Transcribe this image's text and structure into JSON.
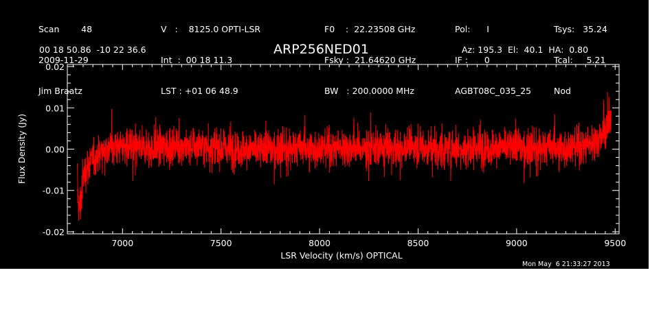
{
  "header": {
    "col1": [
      "Scan        48",
      "2009-11-29",
      "Jim Braatz"
    ],
    "col2": [
      "V   :    8125.0 OPTI-LSR",
      "Int  :  00 18 11.3",
      "LST : +01 06 48.9"
    ],
    "col3": [
      "F0    :  22.23508 GHz",
      "Fsky :  21.64620 GHz",
      "BW   : 200.0000 MHz"
    ],
    "col4": [
      "Pol:      I",
      "IF :      0",
      "AGBT08C_035_25"
    ],
    "col5": [
      "Tsys:   35.24",
      "Tcal:     5.21",
      "Nod"
    ],
    "coords": "00 18 50.86  -10 22 36.6",
    "source": "ARP256NED01",
    "pointing": "Az: 195.3  El:  40.1  HA:  0.80",
    "timestamp": "Mon May  6 21:33:27 2013"
  },
  "colors": {
    "background": "#000000",
    "axes": "#ffffff",
    "trace": "#ff0000"
  },
  "chart_data": {
    "type": "line",
    "xlabel": "LSR Velocity (km/s) OPTICAL",
    "ylabel": "Flux Density (Jy)",
    "xlim": [
      6720,
      9520
    ],
    "ylim": [
      -0.0205,
      0.0205
    ],
    "xticks": [
      7000,
      7500,
      8000,
      8500,
      9000,
      9500
    ],
    "yticks": [
      -0.02,
      -0.01,
      0.0,
      0.01,
      0.02
    ],
    "xtick_labels": [
      "7000",
      "7500",
      "8000",
      "8500",
      "9000",
      "9500"
    ],
    "ytick_labels": [
      "-0.02",
      "-0.01",
      "0.00",
      "0.01",
      "0.02"
    ],
    "grid": false,
    "series": [
      {
        "color": "#ff0000",
        "x": [
          6770,
          6780,
          6790,
          6800,
          6820,
          6840,
          6860,
          6880,
          6900,
          6950,
          7000,
          7050,
          7100,
          7150,
          7200,
          7250,
          7300,
          7350,
          7400,
          7450,
          7500,
          7550,
          7600,
          7650,
          7700,
          7750,
          7800,
          7850,
          7900,
          7950,
          8000,
          8050,
          8100,
          8150,
          8200,
          8250,
          8300,
          8350,
          8400,
          8450,
          8500,
          8550,
          8600,
          8650,
          8700,
          8750,
          8800,
          8850,
          8900,
          8950,
          9000,
          9050,
          9100,
          9150,
          9200,
          9250,
          9300,
          9350,
          9380,
          9400,
          9420,
          9440,
          9460,
          9470,
          9480
        ],
        "y": [
          -0.008,
          -0.015,
          -0.012,
          -0.007,
          -0.004,
          -0.003,
          -0.002,
          -0.001,
          0.0,
          0.0005,
          0.0008,
          0.0005,
          0.0,
          0.0003,
          0.0006,
          0.0005,
          0.0008,
          0.0009,
          0.0006,
          0.0004,
          0.0003,
          0.0001,
          0.0,
          -0.0002,
          -0.0001,
          0.0001,
          0.0003,
          0.0002,
          0.0001,
          0.0002,
          0.0003,
          0.0002,
          0.0004,
          0.0005,
          0.0003,
          0.0001,
          0.0002,
          0.0004,
          0.0005,
          0.0006,
          0.0006,
          0.0002,
          -0.0003,
          0.0,
          0.0003,
          0.0004,
          0.0005,
          0.0004,
          0.0003,
          0.0005,
          0.0006,
          0.0004,
          0.0003,
          0.0002,
          0.0003,
          0.0004,
          0.0006,
          0.001,
          0.0015,
          0.002,
          0.003,
          0.004,
          0.005,
          0.007,
          0.009
        ]
      }
    ]
  }
}
